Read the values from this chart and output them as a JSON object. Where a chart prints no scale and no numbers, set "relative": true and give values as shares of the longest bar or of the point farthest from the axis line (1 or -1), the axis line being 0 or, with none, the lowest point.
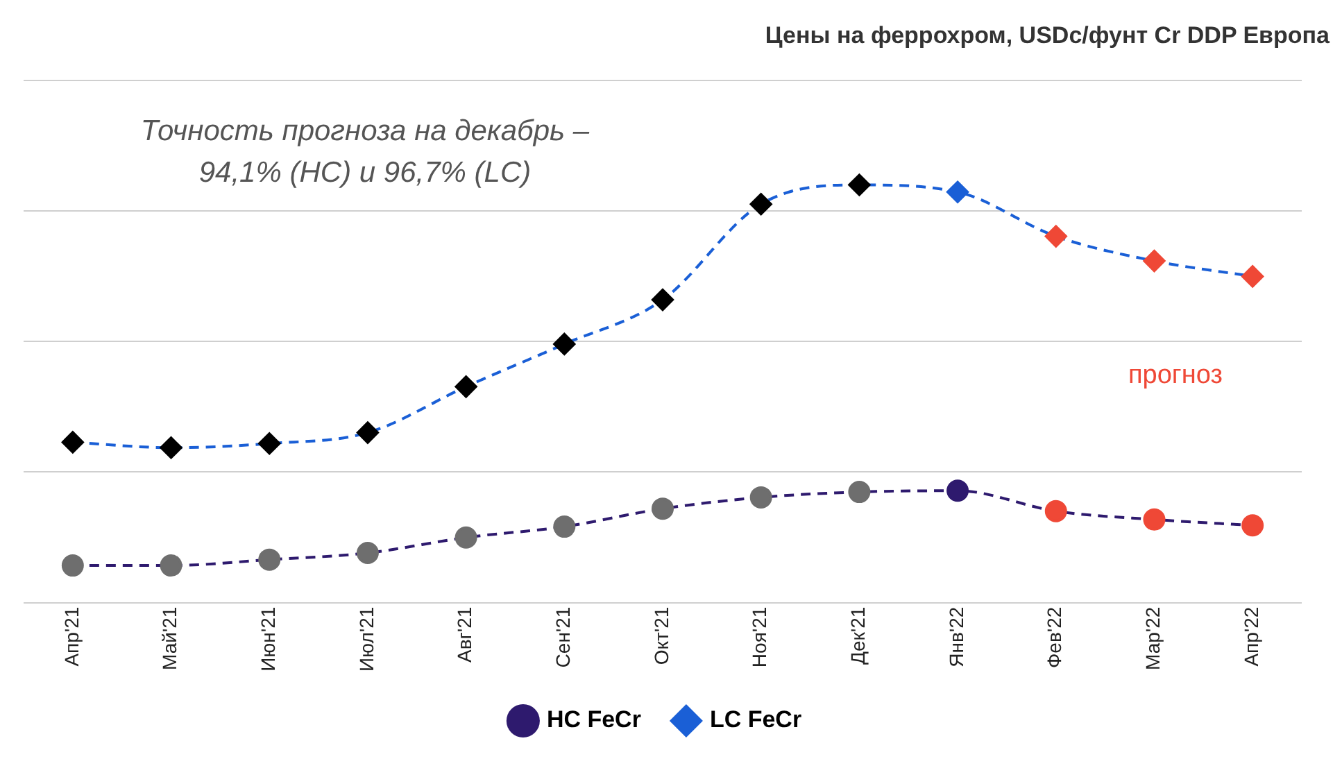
{
  "chart_data": {
    "type": "line",
    "title": "Цены на феррохром, USDc/фунт Cr DDP Европа",
    "relative": true,
    "categories": [
      "Апр'21",
      "Май'21",
      "Июн'21",
      "Июл'21",
      "Авг'21",
      "Сен'21",
      "Окт'21",
      "Ноя'21",
      "Дек'21",
      "Янв'22",
      "Фев'22",
      "Мар'22",
      "Апр'22"
    ],
    "series": [
      {
        "name": "HC FeCr",
        "color": "#2e1a6e",
        "marker": "circle",
        "colors": [
          "#6e6e6e",
          "#6e6e6e",
          "#6e6e6e",
          "#6e6e6e",
          "#6e6e6e",
          "#6e6e6e",
          "#6e6e6e",
          "#6e6e6e",
          "#6e6e6e",
          "#2e1a6e",
          "#ef4836",
          "#ef4836",
          "#ef4836"
        ],
        "values": [
          0.089,
          0.089,
          0.103,
          0.119,
          0.156,
          0.182,
          0.225,
          0.252,
          0.265,
          0.268,
          0.219,
          0.199,
          0.185
        ]
      },
      {
        "name": "LC FeCr",
        "color": "#1a5fd6",
        "marker": "diamond",
        "colors": [
          "#000000",
          "#000000",
          "#000000",
          "#000000",
          "#000000",
          "#000000",
          "#000000",
          "#000000",
          "#000000",
          "#1a5fd6",
          "#ef4836",
          "#ef4836",
          "#ef4836"
        ],
        "values": [
          0.384,
          0.371,
          0.381,
          0.407,
          0.517,
          0.619,
          0.725,
          0.954,
          1,
          0.983,
          0.877,
          0.818,
          0.781
        ]
      }
    ],
    "line_style": "dashed",
    "grid": "y",
    "legend": "bottom",
    "annotations": [
      "Точность прогноза на декабрь – 94,1% (HC) и 96,7% (LC)",
      "прогноз"
    ]
  }
}
